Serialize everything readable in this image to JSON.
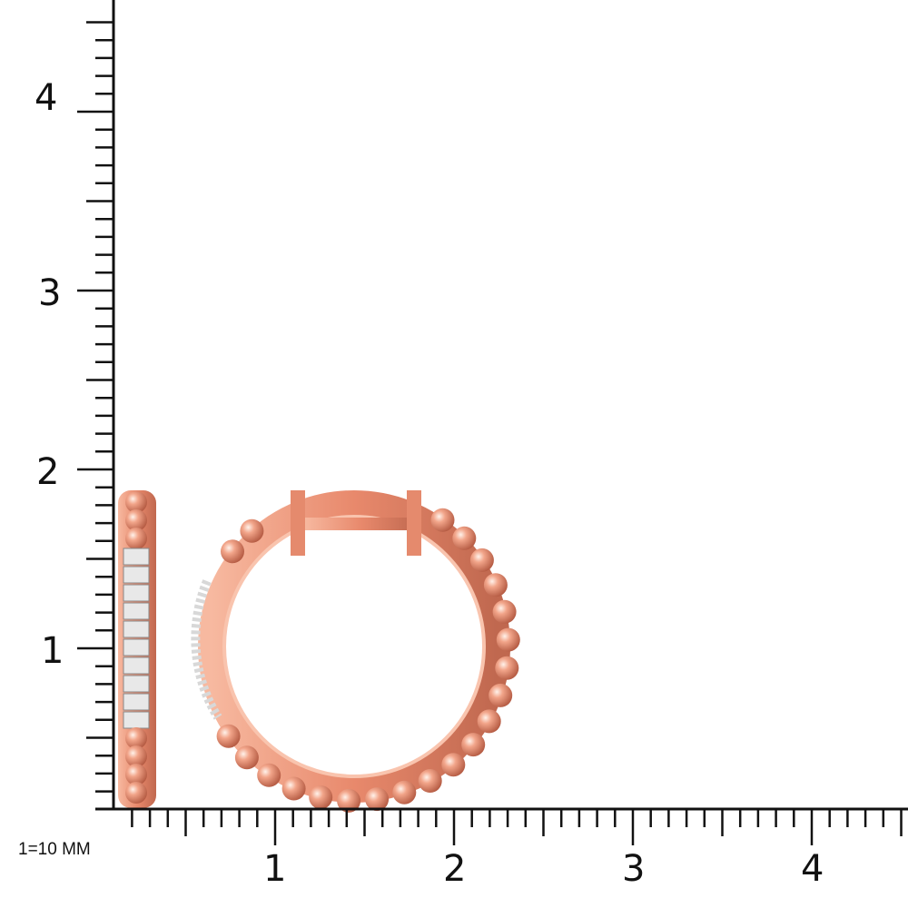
{
  "scale_note": "1=10 MM",
  "x_axis": {
    "tick_labels": [
      "1",
      "2",
      "3",
      "4"
    ],
    "minor_step": 0.1
  },
  "y_axis": {
    "tick_labels": [
      "1",
      "2",
      "3",
      "4"
    ],
    "minor_step": 0.1
  },
  "colors": {
    "metal": "#e9967a",
    "metal_dark": "#b8604a",
    "diamond": "#e6e6e6",
    "axis": "#111111"
  }
}
